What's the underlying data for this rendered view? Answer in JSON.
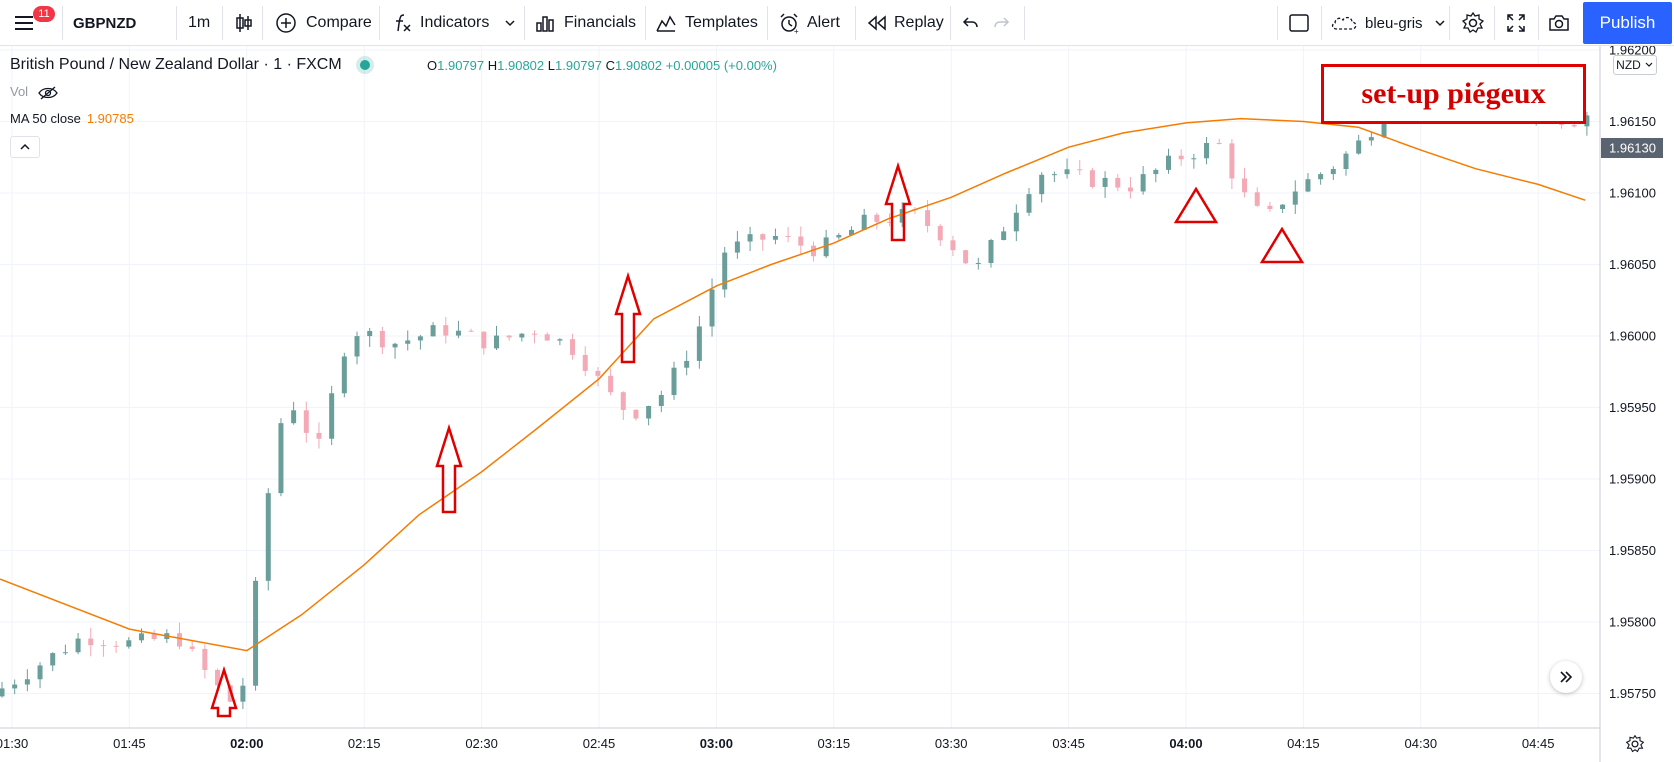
{
  "toolbar": {
    "notification_count": "11",
    "symbol": "GBPNZD",
    "interval": "1m",
    "compare_label": "Compare",
    "indicators_label": "Indicators",
    "financials_label": "Financials",
    "templates_label": "Templates",
    "alert_label": "Alert",
    "replay_label": "Replay",
    "layout_name": "bleu-gris",
    "publish_label": "Publish"
  },
  "legend": {
    "symbol_title": "British Pound / New Zealand Dollar · 1 · FXCM",
    "open_key": "O",
    "open": "1.90797",
    "high_key": "H",
    "high": "1.90802",
    "low_key": "L",
    "low": "1.90797",
    "close_key": "C",
    "close": "1.90802",
    "change": "+0.00005 (+0.00%)",
    "vol_label": "Vol",
    "ma_label": "MA 50 close",
    "ma_value": "1.90785"
  },
  "currency_button": "NZD",
  "annotation_text": "set-up piégeux",
  "colors": {
    "up": "#6a9e9b",
    "down": "#f4a9b6",
    "ma": "#f57c00",
    "annotation": "#e00000",
    "accent": "#2962ff",
    "market_status": "#26a69a"
  },
  "chart_data": {
    "type": "candlestick",
    "price_axis": {
      "ticks": [
        "1.96200",
        "1.96150",
        "1.96100",
        "1.96050",
        "1.96000",
        "1.95950",
        "1.95900",
        "1.95850",
        "1.95800",
        "1.95750"
      ],
      "current_price_label": "1.96130",
      "ylim": [
        1.9572,
        1.962
      ]
    },
    "time_axis": {
      "ticks": [
        "01:30",
        "01:45",
        "02:00",
        "02:15",
        "02:30",
        "02:45",
        "03:00",
        "03:15",
        "03:30",
        "03:45",
        "04:00",
        "04:15",
        "04:30",
        "04:45"
      ],
      "bold_ticks": [
        "02:00",
        "03:00",
        "04:00"
      ]
    },
    "ma_series": {
      "name": "MA 50 close",
      "points": [
        [
          "01:30",
          1.9583
        ],
        [
          "01:45",
          1.95795
        ],
        [
          "02:00",
          1.9578
        ],
        [
          "02:07",
          1.95805
        ],
        [
          "02:15",
          1.9584
        ],
        [
          "02:22",
          1.95875
        ],
        [
          "02:30",
          1.95905
        ],
        [
          "02:37",
          1.95935
        ],
        [
          "02:45",
          1.9597
        ],
        [
          "02:52",
          1.96012
        ],
        [
          "03:00",
          1.96035
        ],
        [
          "03:07",
          1.9605
        ],
        [
          "03:15",
          1.96065
        ],
        [
          "03:22",
          1.96082
        ],
        [
          "03:30",
          1.96097
        ],
        [
          "03:37",
          1.96114
        ],
        [
          "03:45",
          1.96132
        ],
        [
          "03:52",
          1.96142
        ],
        [
          "04:00",
          1.96149
        ],
        [
          "04:07",
          1.96152
        ],
        [
          "04:15",
          1.9615
        ],
        [
          "04:22",
          1.96146
        ],
        [
          "04:30",
          1.9613
        ],
        [
          "04:37",
          1.96117
        ],
        [
          "04:45",
          1.96106
        ],
        [
          "04:51",
          1.96095
        ]
      ]
    },
    "candles_count": 200
  },
  "markers": {
    "arrows": [
      "02:00",
      "02:30",
      "02:57",
      "03:33"
    ],
    "triangles": [
      "04:13",
      "04:25"
    ]
  }
}
